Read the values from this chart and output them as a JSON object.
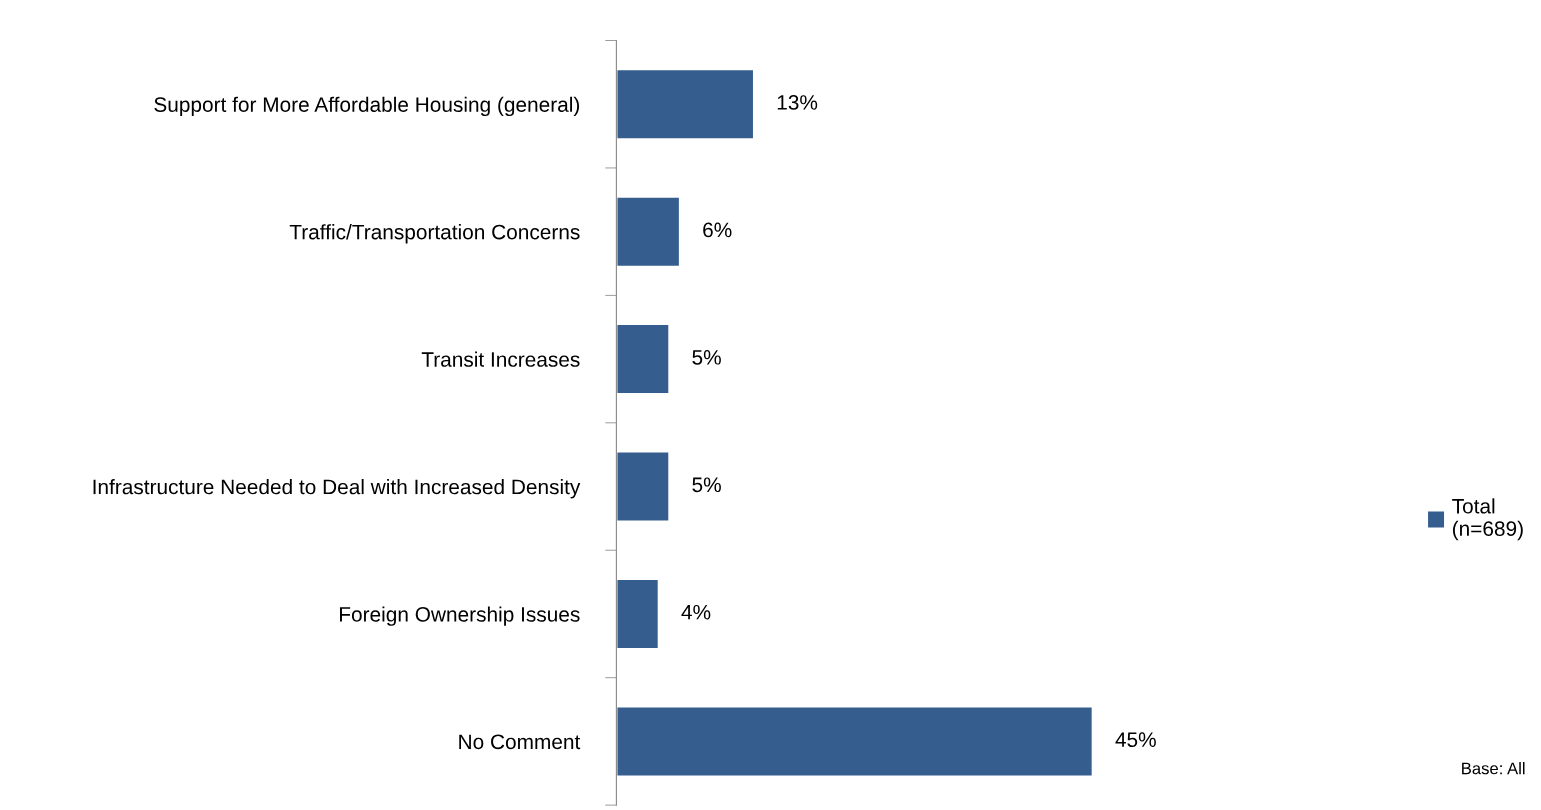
{
  "chart_data": {
    "type": "bar",
    "orientation": "horizontal",
    "categories": [
      "Support for More Affordable Housing (general)",
      "Traffic/Transportation Concerns",
      "Transit Increases",
      "Infrastructure Needed to Deal with Increased Density",
      "Foreign Ownership Issues",
      "No Comment"
    ],
    "series": [
      {
        "name": "Total\n(n=689)",
        "color": "#355e8e",
        "values": [
          13,
          6,
          5,
          5,
          4,
          45
        ],
        "value_labels": [
          "13%",
          "6%",
          "5%",
          "5%",
          "4%",
          "45%"
        ]
      }
    ],
    "legend": "right",
    "tick_labels": "y",
    "grid": false,
    "annotations": [
      "Base: All"
    ]
  }
}
